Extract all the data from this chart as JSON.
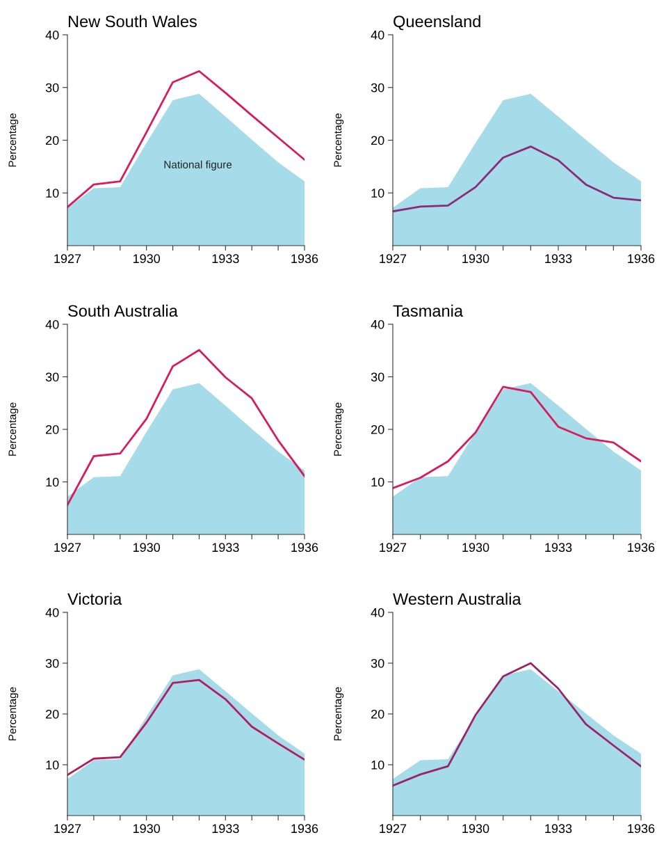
{
  "chart_data": [
    {
      "type": "area",
      "title": "New South Wales",
      "ylabel": "Percentage",
      "x": [
        1927,
        1928,
        1929,
        1930,
        1931,
        1932,
        1933,
        1934,
        1935,
        1936
      ],
      "xlim": [
        1927,
        1936
      ],
      "xticks": [
        1927,
        {
          "value": 1928,
          "label": null
        },
        {
          "value": 1929,
          "label": null
        },
        1930,
        {
          "value": 1931,
          "label": null
        },
        {
          "value": 1932,
          "label": null
        },
        1933,
        {
          "value": 1934,
          "label": null
        },
        {
          "value": 1935,
          "label": null
        },
        1936
      ],
      "ylim": [
        0,
        40
      ],
      "yticks": [
        10,
        20,
        30,
        40
      ],
      "annotations": [
        "National figure"
      ],
      "series": [
        {
          "color": "#a6dbea",
          "values": [
            7.2,
            10.9,
            11.1,
            19.5,
            27.6,
            28.8,
            24.5,
            20.1,
            15.8,
            12.2
          ]
        },
        {
          "type": "line",
          "color": "#d81b5a",
          "values": [
            7.3,
            11.6,
            12.2,
            21.5,
            31.0,
            33.1,
            29.0,
            24.7,
            20.5,
            16.3
          ]
        }
      ]
    },
    {
      "type": "area",
      "title": "Queensland",
      "ylabel": "Percentage",
      "x": [
        1927,
        1928,
        1929,
        1930,
        1931,
        1932,
        1933,
        1934,
        1935,
        1936
      ],
      "xlim": [
        1927,
        1936
      ],
      "xticks": [
        1927,
        {
          "value": 1928,
          "label": null
        },
        {
          "value": 1929,
          "label": null
        },
        1930,
        {
          "value": 1931,
          "label": null
        },
        {
          "value": 1932,
          "label": null
        },
        1933,
        {
          "value": 1934,
          "label": null
        },
        {
          "value": 1935,
          "label": null
        },
        1936
      ],
      "ylim": [
        0,
        40
      ],
      "yticks": [
        10,
        20,
        30,
        40
      ],
      "series": [
        {
          "color": "#a6dbea",
          "values": [
            7.2,
            10.9,
            11.1,
            19.5,
            27.6,
            28.8,
            24.5,
            20.1,
            15.8,
            12.2
          ]
        },
        {
          "type": "line",
          "color": "#8a2a78",
          "values": [
            6.5,
            7.4,
            7.6,
            11.1,
            16.7,
            18.8,
            16.2,
            11.6,
            9.1,
            8.6
          ]
        }
      ]
    },
    {
      "type": "area",
      "title": "South Australia",
      "ylabel": "Percentage",
      "x": [
        1927,
        1928,
        1929,
        1930,
        1931,
        1932,
        1933,
        1934,
        1935,
        1936
      ],
      "xlim": [
        1927,
        1936
      ],
      "xticks": [
        1927,
        {
          "value": 1928,
          "label": null
        },
        {
          "value": 1929,
          "label": null
        },
        1930,
        {
          "value": 1931,
          "label": null
        },
        {
          "value": 1932,
          "label": null
        },
        1933,
        {
          "value": 1934,
          "label": null
        },
        {
          "value": 1935,
          "label": null
        },
        1936
      ],
      "ylim": [
        0,
        40
      ],
      "yticks": [
        10,
        20,
        30,
        40
      ],
      "series": [
        {
          "color": "#a6dbea",
          "values": [
            7.2,
            10.9,
            11.1,
            19.5,
            27.6,
            28.8,
            24.5,
            20.1,
            15.8,
            12.2
          ]
        },
        {
          "type": "line",
          "color": "#d81b5a",
          "values": [
            5.6,
            14.9,
            15.4,
            22.0,
            32.0,
            35.1,
            29.9,
            25.9,
            17.9,
            11.1
          ]
        }
      ]
    },
    {
      "type": "area",
      "title": "Tasmania",
      "ylabel": "Percentage",
      "x": [
        1927,
        1928,
        1929,
        1930,
        1931,
        1932,
        1933,
        1934,
        1935,
        1936
      ],
      "xlim": [
        1927,
        1936
      ],
      "xticks": [
        1927,
        {
          "value": 1928,
          "label": null
        },
        {
          "value": 1929,
          "label": null
        },
        1930,
        {
          "value": 1931,
          "label": null
        },
        {
          "value": 1932,
          "label": null
        },
        1933,
        {
          "value": 1934,
          "label": null
        },
        {
          "value": 1935,
          "label": null
        },
        1936
      ],
      "ylim": [
        0,
        40
      ],
      "yticks": [
        10,
        20,
        30,
        40
      ],
      "series": [
        {
          "color": "#a6dbea",
          "values": [
            7.2,
            10.9,
            11.1,
            19.5,
            27.6,
            28.8,
            24.5,
            20.1,
            15.8,
            12.2
          ]
        },
        {
          "type": "line",
          "color": "#d81b5a",
          "values": [
            8.8,
            10.8,
            13.9,
            19.4,
            28.1,
            27.1,
            20.5,
            18.3,
            17.5,
            13.9
          ]
        }
      ]
    },
    {
      "type": "area",
      "title": "Victoria",
      "ylabel": "Percentage",
      "x": [
        1927,
        1928,
        1929,
        1930,
        1931,
        1932,
        1933,
        1934,
        1935,
        1936
      ],
      "xlim": [
        1927,
        1936
      ],
      "xticks": [
        1927,
        {
          "value": 1928,
          "label": null
        },
        {
          "value": 1929,
          "label": null
        },
        1930,
        {
          "value": 1931,
          "label": null
        },
        {
          "value": 1932,
          "label": null
        },
        1933,
        {
          "value": 1934,
          "label": null
        },
        {
          "value": 1935,
          "label": null
        },
        1936
      ],
      "ylim": [
        0,
        40
      ],
      "yticks": [
        10,
        20,
        30,
        40
      ],
      "series": [
        {
          "color": "#a6dbea",
          "values": [
            7.2,
            10.9,
            11.1,
            19.5,
            27.6,
            28.8,
            24.5,
            20.1,
            15.8,
            12.2
          ]
        },
        {
          "type": "line",
          "color": "#b01e5e",
          "values": [
            8.0,
            11.2,
            11.5,
            18.3,
            26.1,
            26.7,
            22.9,
            17.5,
            14.2,
            11.0
          ]
        }
      ]
    },
    {
      "type": "area",
      "title": "Western Australia",
      "ylabel": "Percentage",
      "x": [
        1927,
        1928,
        1929,
        1930,
        1931,
        1932,
        1933,
        1934,
        1935,
        1936
      ],
      "xlim": [
        1927,
        1936
      ],
      "xticks": [
        1927,
        {
          "value": 1928,
          "label": null
        },
        {
          "value": 1929,
          "label": null
        },
        1930,
        {
          "value": 1931,
          "label": null
        },
        {
          "value": 1932,
          "label": null
        },
        1933,
        {
          "value": 1934,
          "label": null
        },
        {
          "value": 1935,
          "label": null
        },
        1936
      ],
      "ylim": [
        0,
        40
      ],
      "yticks": [
        10,
        20,
        30,
        40
      ],
      "series": [
        {
          "color": "#a6dbea",
          "values": [
            7.2,
            10.9,
            11.1,
            19.5,
            27.6,
            28.8,
            24.5,
            20.1,
            15.8,
            12.2
          ]
        },
        {
          "type": "line",
          "color": "#9a2268",
          "values": [
            5.9,
            8.1,
            9.7,
            19.8,
            27.4,
            30.0,
            25.0,
            18.0,
            13.8,
            9.7
          ]
        }
      ]
    }
  ]
}
